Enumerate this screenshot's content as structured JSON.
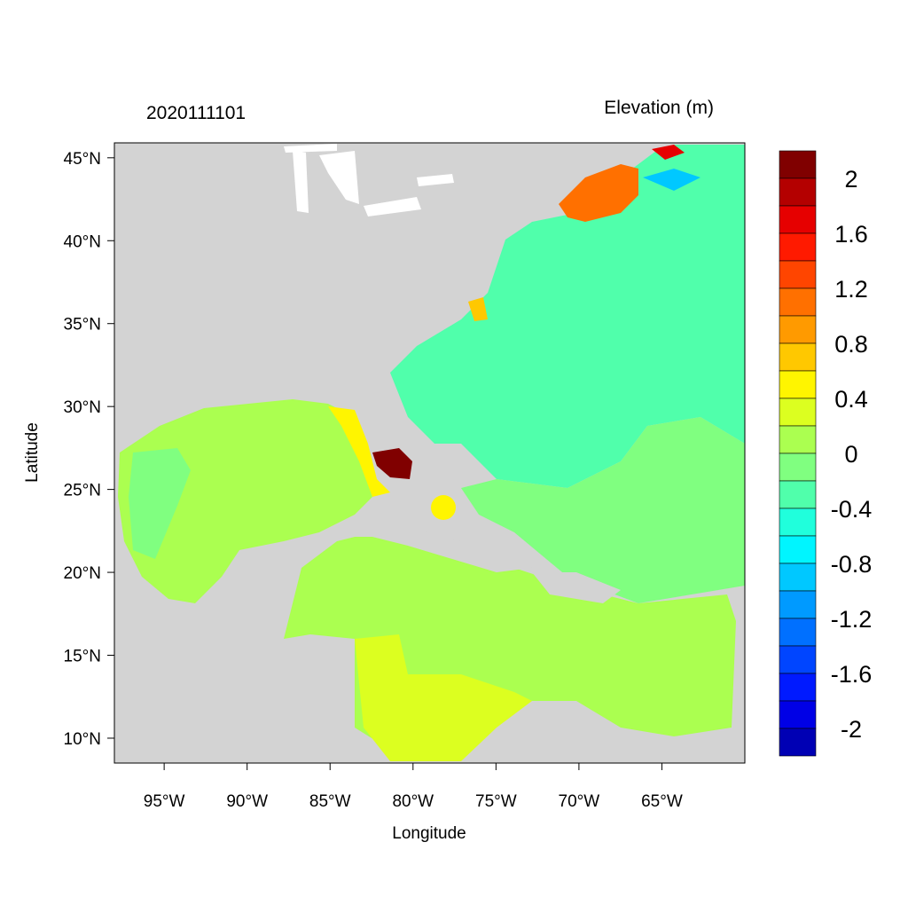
{
  "title_left": "2020111101",
  "title_right": "Elevation (m)",
  "xlabel": "Longitude",
  "ylabel": "Latitude",
  "map": {
    "lon_range": [
      -98,
      -60
    ],
    "lat_range": [
      8.5,
      45.9
    ],
    "land_color": "#d3d3d3",
    "lakes_color": "#ffffff",
    "x_ticks": [
      {
        "lon": -95,
        "label": "95°W"
      },
      {
        "lon": -90,
        "label": "90°W"
      },
      {
        "lon": -85,
        "label": "85°W"
      },
      {
        "lon": -80,
        "label": "80°W"
      },
      {
        "lon": -75,
        "label": "75°W"
      },
      {
        "lon": -70,
        "label": "70°W"
      },
      {
        "lon": -65,
        "label": "65°W"
      }
    ],
    "y_ticks": [
      {
        "lat": 45,
        "label": "45°N"
      },
      {
        "lat": 40,
        "label": "40°N"
      },
      {
        "lat": 35,
        "label": "35°N"
      },
      {
        "lat": 30,
        "label": "30°N"
      },
      {
        "lat": 25,
        "label": "25°N"
      },
      {
        "lat": 20,
        "label": "20°N"
      },
      {
        "lat": 15,
        "label": "15°N"
      },
      {
        "lat": 10,
        "label": "10°N"
      }
    ]
  },
  "colorbar": {
    "min": -2.2,
    "max": 2.2,
    "step": 0.2,
    "colors_top_to_bottom": [
      "#800000",
      "#b40000",
      "#e60000",
      "#ff1a00",
      "#ff4500",
      "#ff7000",
      "#ff9a00",
      "#ffc800",
      "#fff500",
      "#dcff20",
      "#abff50",
      "#80ff80",
      "#50ffab",
      "#20ffdc",
      "#00f5ff",
      "#00c8ff",
      "#009aff",
      "#0070ff",
      "#0045ff",
      "#001aff",
      "#0000e6",
      "#0000b4"
    ],
    "labels": [
      {
        "value": 2,
        "label": "2"
      },
      {
        "value": 1.6,
        "label": "1.6"
      },
      {
        "value": 1.2,
        "label": "1.2"
      },
      {
        "value": 0.8,
        "label": "0.8"
      },
      {
        "value": 0.4,
        "label": "0.4"
      },
      {
        "value": 0,
        "label": "0"
      },
      {
        "value": -0.4,
        "label": "-0.4"
      },
      {
        "value": -0.8,
        "label": "-0.8"
      },
      {
        "value": -1.2,
        "label": "-1.2"
      },
      {
        "value": -1.6,
        "label": "-1.6"
      },
      {
        "value": -2,
        "label": "-2"
      }
    ]
  }
}
